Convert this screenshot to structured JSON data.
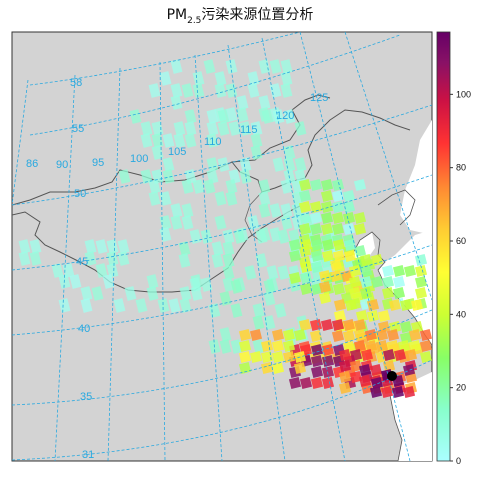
{
  "title": {
    "prefix": "PM",
    "sub": "2.5",
    "suffix": "污染来源位置分析"
  },
  "colorbar": {
    "min": 0,
    "max": 117,
    "ticks": [
      "0",
      "20",
      "40",
      "60",
      "80",
      "100"
    ],
    "tick_values": [
      0,
      20,
      40,
      60,
      80,
      100
    ],
    "palette": [
      "#aaffff",
      "#88ffcc",
      "#88ff66",
      "#ccff33",
      "#ffff33",
      "#ffcc33",
      "#ff8833",
      "#ff3333",
      "#cc1144",
      "#881166",
      "#660066"
    ]
  },
  "graticule": {
    "latitudes": [
      "31",
      "35",
      "40",
      "45",
      "50",
      "55"
    ],
    "longitudes": [
      "86",
      "90",
      "95",
      "100",
      "105",
      "110",
      "115",
      "120",
      "125"
    ]
  },
  "colors": {
    "land": "#d3d3d3",
    "border": "#555555",
    "grid": "#29a9e0",
    "low_cell": "#88e8c0",
    "receptor": "#000000"
  },
  "chart_data": {
    "type": "heatmap",
    "title": "PM2.5污染来源位置分析",
    "value_range": [
      0,
      117
    ],
    "cells_description": "Gridded source contribution; low values (pale green) spread over northwest, high values (red/purple) concentrated near the receptor on the east coast",
    "sample_cells": [
      {
        "lon": 120.5,
        "lat": 31.0,
        "value": 117
      },
      {
        "lon": 119.5,
        "lat": 32.0,
        "value": 100
      },
      {
        "lon": 118.0,
        "lat": 32.5,
        "value": 95
      },
      {
        "lon": 117.0,
        "lat": 33.5,
        "value": 90
      },
      {
        "lon": 119.0,
        "lat": 34.0,
        "value": 75
      },
      {
        "lon": 120.0,
        "lat": 33.0,
        "value": 70
      },
      {
        "lon": 116.0,
        "lat": 35.0,
        "value": 55
      },
      {
        "lon": 118.5,
        "lat": 36.5,
        "value": 45
      },
      {
        "lon": 121.0,
        "lat": 35.5,
        "value": 30
      },
      {
        "lon": 122.0,
        "lat": 34.0,
        "value": 20
      },
      {
        "lon": 112.0,
        "lat": 40.0,
        "value": 10
      },
      {
        "lon": 105.0,
        "lat": 43.0,
        "value": 8
      },
      {
        "lon": 95.0,
        "lat": 45.0,
        "value": 6
      }
    ]
  }
}
